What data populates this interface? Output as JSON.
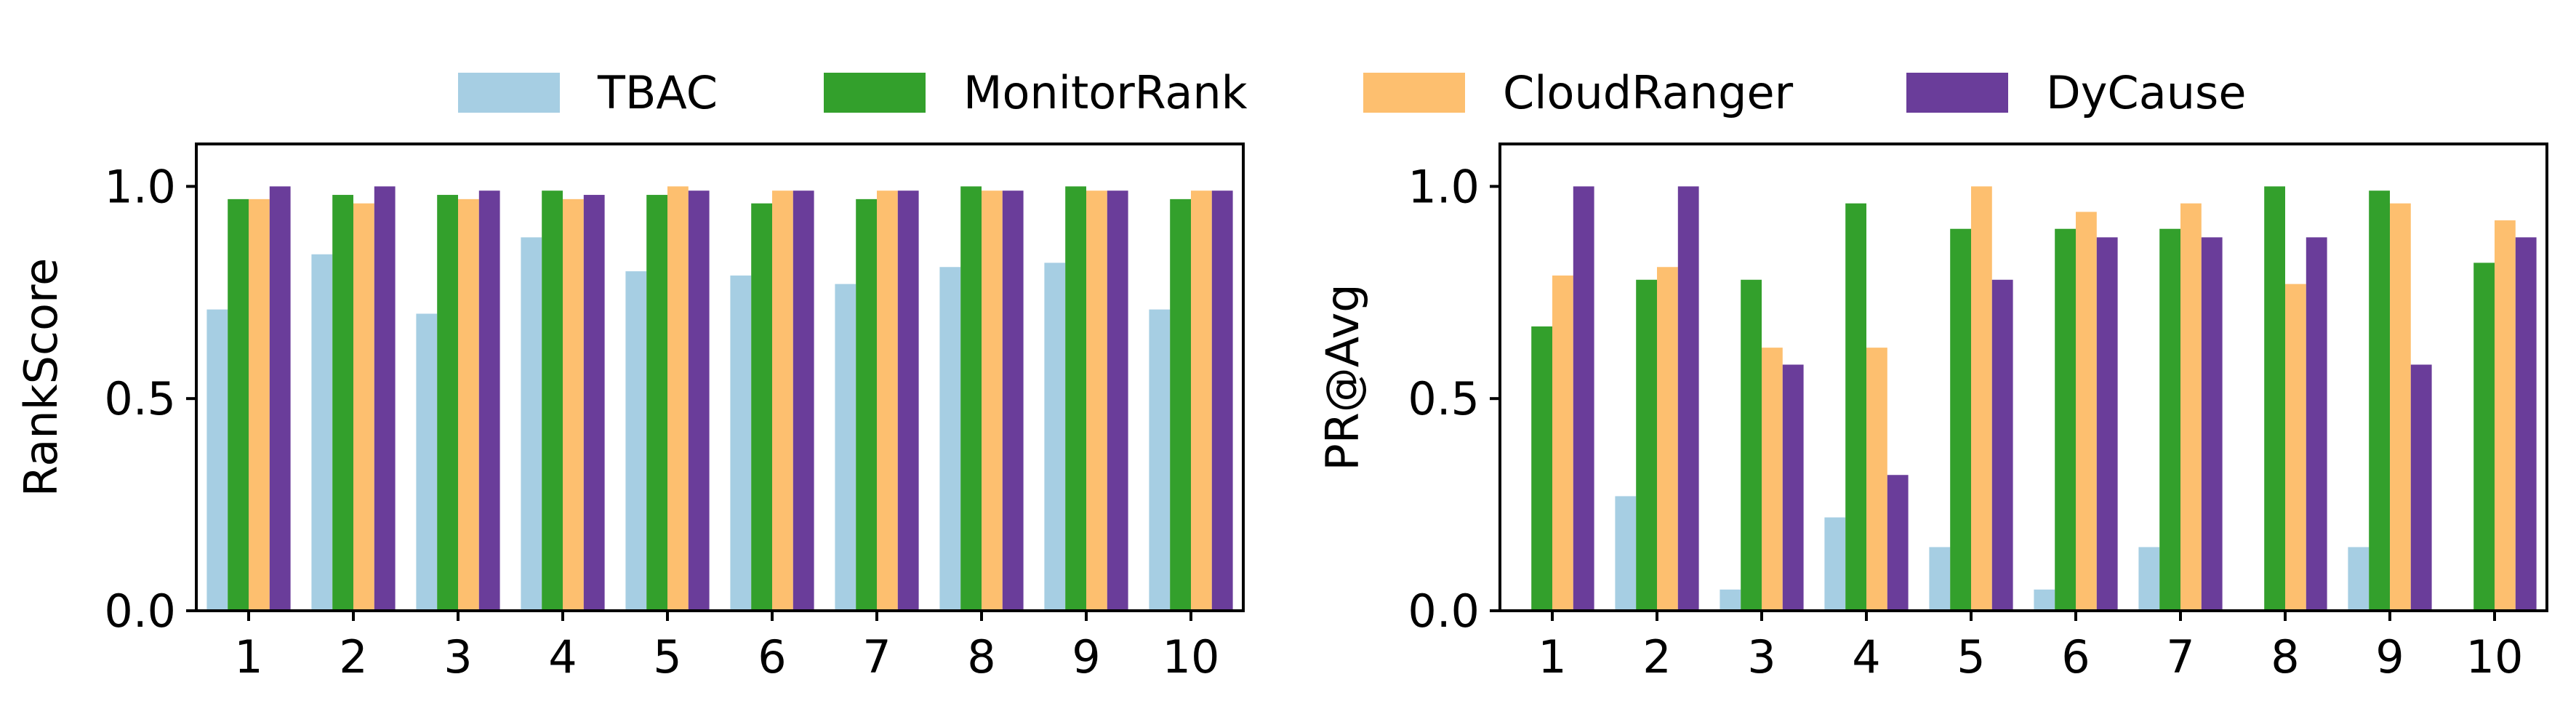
{
  "legend": {
    "items": [
      {
        "label": "TBAC",
        "color": "#a6cee3"
      },
      {
        "label": "MonitorRank",
        "color": "#33a02c"
      },
      {
        "label": "CloudRanger",
        "color": "#fdbf6f"
      },
      {
        "label": "DyCause",
        "color": "#6a3d9a"
      }
    ]
  },
  "chart_data": [
    {
      "type": "bar",
      "xlabel": "",
      "ylabel": "RankScore",
      "ylim": [
        0,
        1.1
      ],
      "yticks": [
        "0.0",
        "0.5",
        "1.0"
      ],
      "categories": [
        "1",
        "2",
        "3",
        "4",
        "5",
        "6",
        "7",
        "8",
        "9",
        "10"
      ],
      "series": [
        {
          "name": "TBAC",
          "color": "#a6cee3",
          "values": [
            0.71,
            0.84,
            0.7,
            0.88,
            0.8,
            0.79,
            0.77,
            0.81,
            0.82,
            0.71
          ]
        },
        {
          "name": "MonitorRank",
          "color": "#33a02c",
          "values": [
            0.97,
            0.98,
            0.98,
            0.99,
            0.98,
            0.96,
            0.97,
            1.0,
            1.0,
            0.97
          ]
        },
        {
          "name": "CloudRanger",
          "color": "#fdbf6f",
          "values": [
            0.97,
            0.96,
            0.97,
            0.97,
            1.0,
            0.99,
            0.99,
            0.99,
            0.99,
            0.99
          ]
        },
        {
          "name": "DyCause",
          "color": "#6a3d9a",
          "values": [
            1.0,
            1.0,
            0.99,
            0.98,
            0.99,
            0.99,
            0.99,
            0.99,
            0.99,
            0.99
          ]
        }
      ]
    },
    {
      "type": "bar",
      "xlabel": "",
      "ylabel": "PR@Avg",
      "ylim": [
        0,
        1.1
      ],
      "yticks": [
        "0.0",
        "0.5",
        "1.0"
      ],
      "categories": [
        "1",
        "2",
        "3",
        "4",
        "5",
        "6",
        "7",
        "8",
        "9",
        "10"
      ],
      "series": [
        {
          "name": "TBAC",
          "color": "#a6cee3",
          "values": [
            0.0,
            0.27,
            0.05,
            0.22,
            0.15,
            0.05,
            0.15,
            0.0,
            0.15,
            0.0
          ]
        },
        {
          "name": "MonitorRank",
          "color": "#33a02c",
          "values": [
            0.67,
            0.78,
            0.78,
            0.96,
            0.9,
            0.9,
            0.9,
            1.0,
            0.99,
            0.82
          ]
        },
        {
          "name": "CloudRanger",
          "color": "#fdbf6f",
          "values": [
            0.79,
            0.81,
            0.62,
            0.62,
            1.0,
            0.94,
            0.96,
            0.77,
            0.96,
            0.92
          ]
        },
        {
          "name": "DyCause",
          "color": "#6a3d9a",
          "values": [
            1.0,
            1.0,
            0.58,
            0.32,
            0.78,
            0.88,
            0.88,
            0.88,
            0.58,
            0.88
          ]
        }
      ]
    }
  ]
}
